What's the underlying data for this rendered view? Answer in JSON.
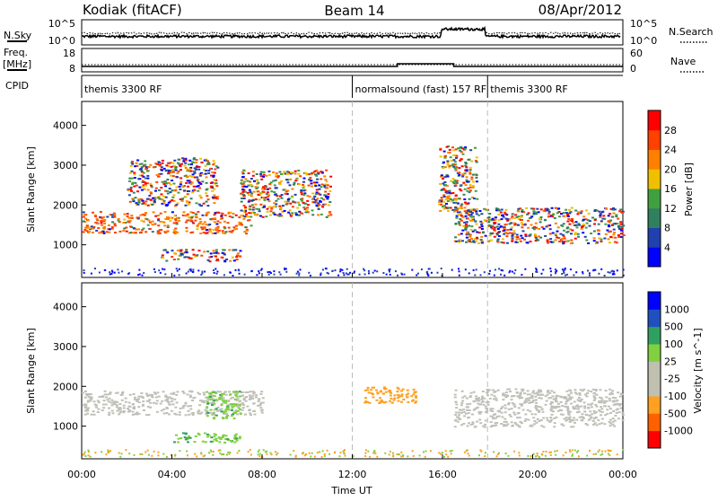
{
  "header": {
    "station": "Kodiak (fitACF)",
    "beam": "Beam 14",
    "date": "08/Apr/2012"
  },
  "noise_panel": {
    "left_label": "N.Sky",
    "right_label": "N.Search",
    "left_ticks": [
      "10^5",
      "10^0"
    ],
    "right_ticks": [
      "10^5",
      "10^0"
    ]
  },
  "freq_panel": {
    "left_label_line1": "Freq.",
    "left_label_line2": "[MHz]",
    "right_label": "Nave",
    "left_ticks": [
      "18",
      "8"
    ],
    "right_ticks": [
      "60",
      "0"
    ]
  },
  "cpid": {
    "label": "CPID",
    "segments": [
      {
        "name": "themis 3300 RF",
        "start_hour": 0
      },
      {
        "name": "normalsound (fast) 157 RF",
        "start_hour": 12
      },
      {
        "name": "themis 3300 RF",
        "start_hour": 18
      }
    ]
  },
  "chart_data": [
    {
      "type": "heatmap",
      "title": "Power",
      "ylabel": "Slant Range [km]",
      "xlabel": "Time UT",
      "x_range_hours": [
        0,
        24
      ],
      "ylim": [
        180,
        4600
      ],
      "yticks": [
        1000,
        2000,
        3000,
        4000
      ],
      "colorbar": {
        "label": "Power [dB]",
        "ticks": [
          "28",
          "24",
          "20",
          "16",
          "12",
          "8",
          "4"
        ],
        "colors": [
          "#0000ff",
          "#2040b0",
          "#308060",
          "#40a040",
          "#f0c000",
          "#ff8000",
          "#ff4000",
          "#ff0000"
        ]
      },
      "regions": [
        {
          "t0": 0.0,
          "t1": 7.5,
          "r0": 1300,
          "r1": 1850,
          "desc": "main echo band (strong)"
        },
        {
          "t0": 2.0,
          "t1": 6.0,
          "r0": 2000,
          "r1": 3200,
          "desc": "scattered echoes"
        },
        {
          "t0": 3.5,
          "t1": 7.0,
          "r0": 600,
          "r1": 900,
          "desc": "near-range echo"
        },
        {
          "t0": 7.0,
          "t1": 11.0,
          "r0": 1700,
          "r1": 2900,
          "desc": "weak diffuse echoes"
        },
        {
          "t0": 16.5,
          "t1": 24.0,
          "r0": 1050,
          "r1": 1950,
          "desc": "main echo band"
        },
        {
          "t0": 15.8,
          "t1": 17.5,
          "r0": 1800,
          "r1": 3500,
          "desc": "scattered echoes"
        }
      ]
    },
    {
      "type": "heatmap",
      "title": "Velocity",
      "ylabel": "Slant Range [km]",
      "xlabel": "Time UT",
      "x_range_hours": [
        0,
        24
      ],
      "ylim": [
        180,
        4600
      ],
      "yticks": [
        1000,
        2000,
        3000,
        4000
      ],
      "colorbar": {
        "label": "Velocity [m s^-1]",
        "ticks": [
          "1000",
          "500",
          "100",
          "25",
          "-25",
          "-100",
          "-500",
          "-1000"
        ],
        "colors": [
          "#ff0000",
          "#ff6000",
          "#ffa020",
          "#c0c0b0",
          "#c0c0b0",
          "#80d040",
          "#30a060",
          "#2050c0",
          "#0000ff"
        ]
      },
      "regions": [
        {
          "t0": 0.0,
          "t1": 8.0,
          "r0": 1300,
          "r1": 1900,
          "desc": "ground scatter (grey)"
        },
        {
          "t0": 5.5,
          "t1": 7.0,
          "r0": 1200,
          "r1": 1900,
          "desc": "positive velocity (green)"
        },
        {
          "t0": 4.0,
          "t1": 7.0,
          "r0": 600,
          "r1": 850,
          "desc": "positive velocity (green)"
        },
        {
          "t0": 12.5,
          "t1": 15.0,
          "r0": 1600,
          "r1": 2000,
          "desc": "negative velocity (orange)"
        },
        {
          "t0": 16.5,
          "t1": 24.0,
          "r0": 1000,
          "r1": 1950,
          "desc": "ground scatter (grey)"
        }
      ]
    }
  ],
  "x_axis": {
    "label": "Time UT",
    "ticks": [
      "00:00",
      "04:00",
      "08:00",
      "12:00",
      "16:00",
      "20:00",
      "00:00"
    ]
  }
}
